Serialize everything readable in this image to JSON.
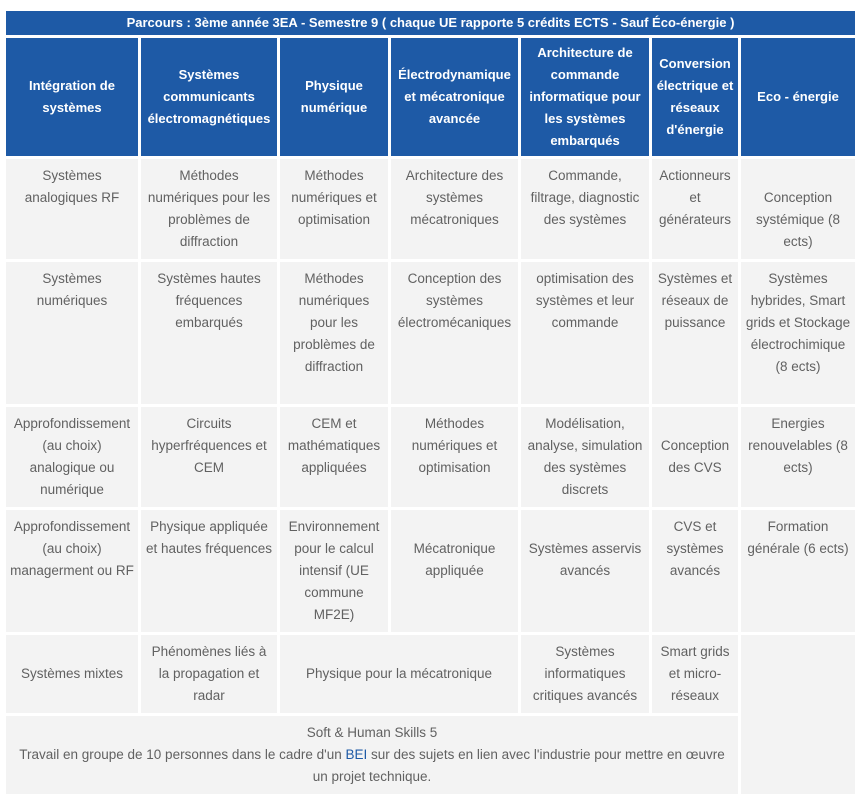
{
  "table": {
    "title": "Parcours : 3ème année 3EA - Semestre 9  ( chaque UE rapporte 5 crédits ECTS - Sauf Éco-énergie )",
    "columns": [
      "Intégration de systèmes",
      "Systèmes communicants électromagnétiques",
      "Physique numérique",
      "Électrodynamique et mécatronique avancée",
      "Architecture de commande informatique pour les systèmes embarqués",
      "Conversion électrique et réseaux d'énergie",
      "Eco - énergie"
    ],
    "rows": [
      [
        "Systèmes analogiques  RF",
        "Méthodes numériques pour les problèmes de diffraction",
        "Méthodes numériques et optimisation",
        "Architecture des systèmes mécatroniques",
        "Commande, filtrage, diagnostic des systèmes",
        "Actionneurs et générateurs",
        "Conception systémique (8 ects)"
      ],
      [
        "Systèmes numériques",
        "Systèmes hautes fréquences embarqués",
        "Méthodes numériques pour les problèmes de diffraction",
        "Conception des systèmes électromécaniques",
        "optimisation des systèmes et leur commande",
        "Systèmes et réseaux de puissance",
        "Systèmes hybrides, Smart grids et Stockage électrochimique (8 ects)"
      ],
      [
        "Approfondissement (au choix) analogique ou numérique",
        "Circuits hyperfréquences et CEM",
        "CEM et mathématiques appliquées",
        "Méthodes numériques et optimisation",
        "Modélisation, analyse, simulation des systèmes discrets",
        "Conception des CVS",
        "Energies renouvelables (8 ects)"
      ],
      [
        "Approfondissement (au choix) managerment ou RF",
        "Physique appliquée et hautes fréquences",
        "Environnement pour le calcul intensif (UE commune MF2E)",
        "Mécatronique appliquée",
        "Systèmes asservis avancés",
        "CVS et systèmes avancés",
        "Formation générale (6 ects)"
      ]
    ],
    "row5": {
      "c1": "Systèmes mixtes",
      "c2": "Phénomènes liés à la propagation et radar",
      "c34": "Physique pour la mécatronique",
      "c5": "Systèmes informatiques critiques avancés",
      "c6": "Smart grids et micro-réseaux"
    },
    "footer": {
      "line1": "Soft & Human Skills 5",
      "text_before": "Travail en groupe de 10 personnes dans le cadre d'un ",
      "link": "BEI",
      "text_after": " sur des sujets en lien avec l'industrie pour mettre en œuvre un projet technique."
    }
  }
}
